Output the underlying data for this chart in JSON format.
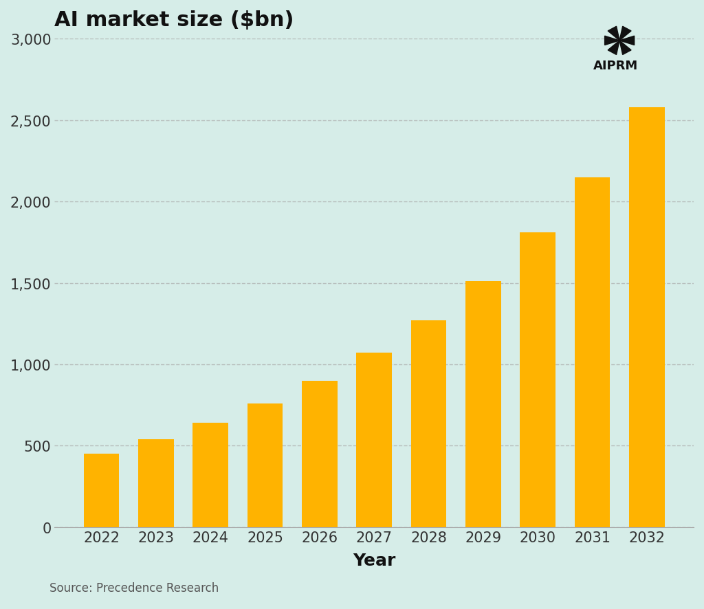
{
  "title": "AI market size ($bn)",
  "xlabel": "Year",
  "ylabel": "",
  "source": "Source: Precedence Research",
  "categories": [
    2022,
    2023,
    2024,
    2025,
    2026,
    2027,
    2028,
    2029,
    2030,
    2031,
    2032
  ],
  "values": [
    450,
    540,
    640,
    760,
    900,
    1070,
    1270,
    1510,
    1810,
    2150,
    2580
  ],
  "bar_color": "#FFB300",
  "background_color": "#D6EDE8",
  "ylim": [
    0,
    3000
  ],
  "yticks": [
    0,
    500,
    1000,
    1500,
    2000,
    2500,
    3000
  ],
  "ytick_labels": [
    "0",
    "500",
    "1,000",
    "1,500",
    "2,000",
    "2,500",
    "3,000"
  ],
  "title_fontsize": 22,
  "xlabel_fontsize": 18,
  "tick_fontsize": 15,
  "source_fontsize": 12,
  "grid_color": "#aaaaaa",
  "axis_color": "#888888"
}
